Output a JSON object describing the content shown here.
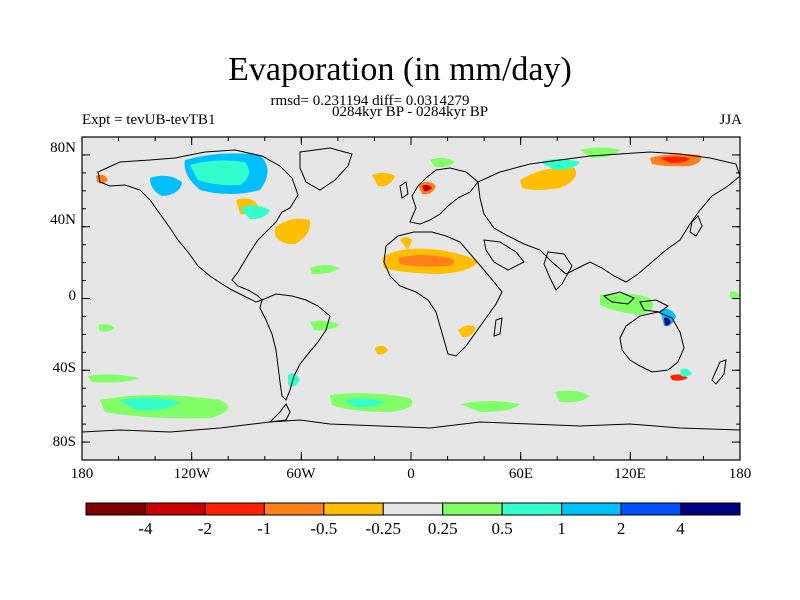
{
  "title": "Evaporation (in mm/day)",
  "stats_line": "rmsd= 0.231194 diff= 0.0314279",
  "period_line": "0284kyr BP - 0284kyr BP",
  "experiment_label": "Expt = tevUB-tevTB1",
  "season_label": "JJA",
  "map": {
    "projection": "cylindrical equidistant",
    "background_color": "#e6e6e6",
    "lat_range": [
      -90,
      90
    ],
    "lon_range": [
      -180,
      180
    ],
    "y_ticks": [
      "80N",
      "40N",
      "0",
      "40S",
      "80S"
    ],
    "x_ticks": [
      "180",
      "120W",
      "60W",
      "0",
      "60E",
      "120E",
      "180"
    ]
  },
  "colorbar": {
    "colors": [
      "#7f0000",
      "#c80000",
      "#ff2000",
      "#ff7f1a",
      "#ffbf00",
      "#e6e6e6",
      "#80ff66",
      "#33ffcc",
      "#00bfff",
      "#0050ff",
      "#000080"
    ],
    "labels": [
      "-4",
      "-2",
      "-1",
      "-0.5",
      "-0.25",
      "0.25",
      "0.5",
      "1",
      "2",
      "4"
    ]
  }
}
